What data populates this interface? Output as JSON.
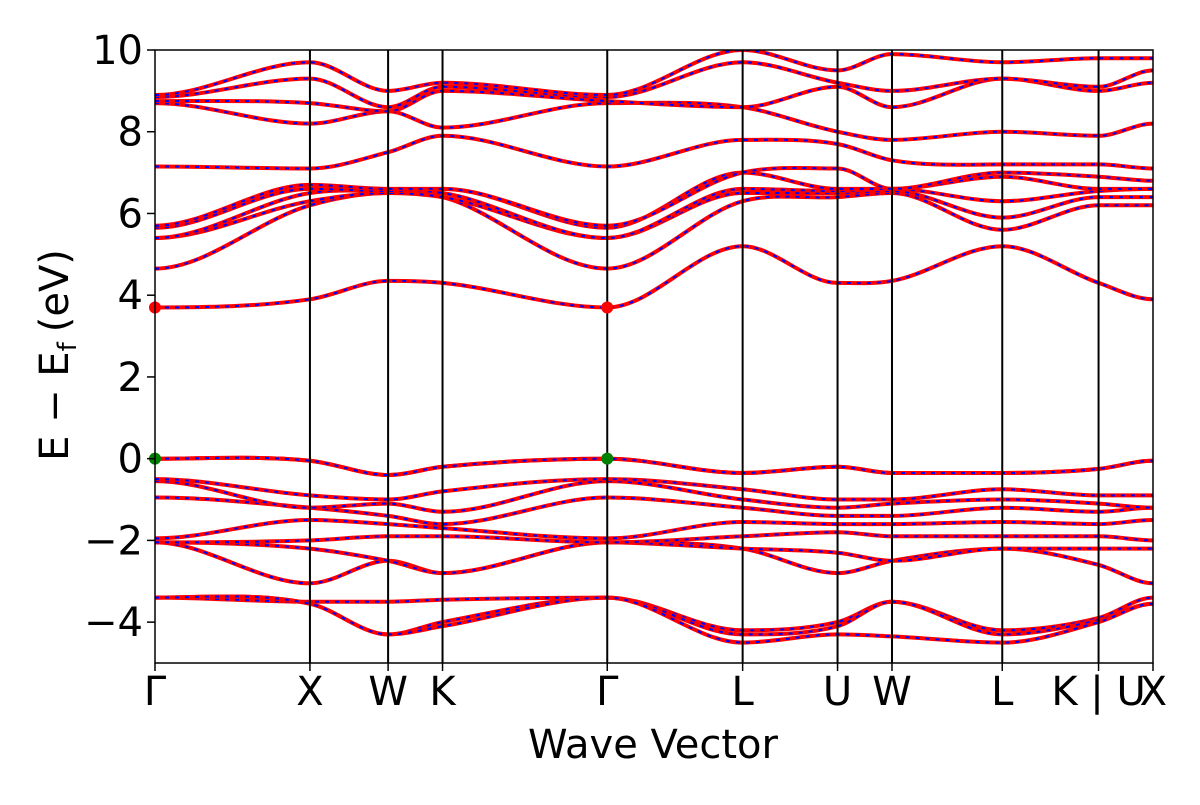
{
  "chart_data": {
    "type": "line",
    "title": "",
    "xlabel": "Wave Vector",
    "ylabel_main": "E − E",
    "ylabel_sub": "f",
    "ylabel_unit": "(eV)",
    "ylim": [
      -5,
      10
    ],
    "yticks": [
      -4,
      -2,
      0,
      2,
      4,
      6,
      8,
      10
    ],
    "ytick_labels": [
      "−4",
      "−2",
      "0",
      "2",
      "4",
      "6",
      "8",
      "10"
    ],
    "xlim": [
      0,
      7.15
    ],
    "kpoints": [
      {
        "label": "Γ",
        "x": 0.0
      },
      {
        "label": "X",
        "x": 1.11
      },
      {
        "label": "W",
        "x": 1.67
      },
      {
        "label": "K",
        "x": 2.06
      },
      {
        "label": "Γ",
        "x": 3.24
      },
      {
        "label": "L",
        "x": 4.21
      },
      {
        "label": "U",
        "x": 4.89
      },
      {
        "label": "W",
        "x": 5.28
      },
      {
        "label": "L",
        "x": 6.07
      },
      {
        "label": "K | U",
        "x": 6.76
      },
      {
        "label": "X",
        "x": 7.15
      }
    ],
    "colors": {
      "band_primary": "#ff0000",
      "band_overlay": "#0000ff",
      "cbm_marker": "#ff0000",
      "vbm_marker": "#008000"
    },
    "markers": [
      {
        "name": "CBM",
        "x": 0.0,
        "y": 3.7
      },
      {
        "name": "CBM",
        "x": 3.24,
        "y": 3.7
      },
      {
        "name": "VBM",
        "x": 0.0,
        "y": 0.0
      },
      {
        "name": "VBM",
        "x": 3.24,
        "y": 0.0
      }
    ],
    "bands": [
      {
        "y": [
          -3.4,
          -3.5,
          -3.5,
          -3.45,
          -3.4,
          -4.2,
          -4.0,
          -3.5,
          -4.2,
          -3.9,
          -3.4
        ]
      },
      {
        "y": [
          -3.4,
          -3.55,
          -4.3,
          -4.0,
          -3.4,
          -4.3,
          -4.1,
          -3.5,
          -4.3,
          -3.95,
          -3.55
        ]
      },
      {
        "y": [
          -3.4,
          -3.55,
          -4.3,
          -4.1,
          -3.4,
          -4.5,
          -4.3,
          -4.35,
          -4.5,
          -4.0,
          -3.55
        ]
      },
      {
        "y": [
          -2.05,
          -3.05,
          -2.5,
          -2.8,
          -2.05,
          -2.2,
          -2.8,
          -2.5,
          -2.2,
          -2.6,
          -3.05
        ]
      },
      {
        "y": [
          -2.05,
          -2.2,
          -2.5,
          -2.8,
          -2.05,
          -2.2,
          -2.3,
          -2.5,
          -2.2,
          -2.2,
          -2.2
        ]
      },
      {
        "y": [
          -2.05,
          -2.0,
          -1.9,
          -1.9,
          -2.05,
          -1.9,
          -1.8,
          -1.9,
          -1.9,
          -1.9,
          -2.0
        ]
      },
      {
        "y": [
          -1.95,
          -1.5,
          -1.6,
          -1.7,
          -1.95,
          -1.55,
          -1.6,
          -1.6,
          -1.55,
          -1.6,
          -1.5
        ]
      },
      {
        "y": [
          -0.95,
          -1.2,
          -1.4,
          -1.6,
          -0.95,
          -1.2,
          -1.4,
          -1.4,
          -1.2,
          -1.3,
          -1.2
        ]
      },
      {
        "y": [
          -0.55,
          -1.2,
          -1.1,
          -1.3,
          -0.55,
          -1.0,
          -1.2,
          -1.1,
          -1.0,
          -1.1,
          -1.2
        ]
      },
      {
        "y": [
          -0.5,
          -0.9,
          -1.0,
          -0.8,
          -0.5,
          -0.75,
          -1.0,
          -1.0,
          -0.75,
          -0.9,
          -0.9
        ]
      },
      {
        "y": [
          0.0,
          -0.05,
          -0.4,
          -0.2,
          0.0,
          -0.35,
          -0.2,
          -0.35,
          -0.35,
          -0.25,
          -0.05
        ]
      },
      {
        "y": [
          0.0,
          -0.05,
          -0.4,
          -0.2,
          0.0,
          -0.35,
          -0.2,
          -0.35,
          -0.35,
          -0.25,
          -0.05
        ]
      },
      {
        "y": [
          3.7,
          3.9,
          4.35,
          4.3,
          3.7,
          5.2,
          4.3,
          4.35,
          5.2,
          4.3,
          3.9
        ]
      },
      {
        "y": [
          4.65,
          6.2,
          6.5,
          6.4,
          4.65,
          6.3,
          6.4,
          6.5,
          5.6,
          6.2,
          6.2
        ]
      },
      {
        "y": [
          5.4,
          6.3,
          6.5,
          6.4,
          5.4,
          6.5,
          6.5,
          6.55,
          5.9,
          6.4,
          6.4
        ]
      },
      {
        "y": [
          5.4,
          6.5,
          6.55,
          6.5,
          5.4,
          6.6,
          6.55,
          6.6,
          6.3,
          6.55,
          6.6
        ]
      },
      {
        "y": [
          5.65,
          6.6,
          6.55,
          6.6,
          5.65,
          7.0,
          6.6,
          6.6,
          6.9,
          6.6,
          6.6
        ]
      },
      {
        "y": [
          5.7,
          6.7,
          6.6,
          6.6,
          5.7,
          7.0,
          7.1,
          6.6,
          7.0,
          6.9,
          6.8
        ]
      },
      {
        "y": [
          7.15,
          7.1,
          7.5,
          7.9,
          7.15,
          7.8,
          7.7,
          7.3,
          7.2,
          7.2,
          7.1
        ]
      },
      {
        "y": [
          8.7,
          8.2,
          8.5,
          8.1,
          8.7,
          8.6,
          8.0,
          7.8,
          8.0,
          7.9,
          8.2
        ]
      },
      {
        "y": [
          8.75,
          8.7,
          8.5,
          9.0,
          8.75,
          8.6,
          9.1,
          8.6,
          9.3,
          9.0,
          9.2
        ]
      },
      {
        "y": [
          8.85,
          9.3,
          8.6,
          9.1,
          8.85,
          9.7,
          9.2,
          9.0,
          9.3,
          9.1,
          9.5
        ]
      },
      {
        "y": [
          8.9,
          9.7,
          9.0,
          9.2,
          8.9,
          10.0,
          9.5,
          9.9,
          9.7,
          9.8,
          9.8
        ]
      }
    ]
  }
}
